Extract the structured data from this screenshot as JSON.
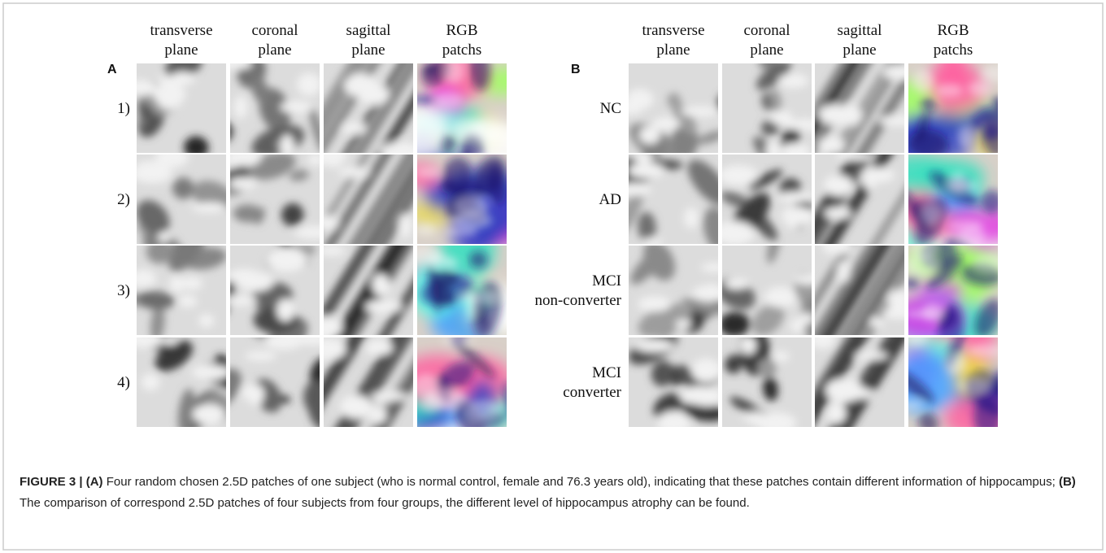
{
  "panel_a": {
    "label": "A",
    "column_headers": [
      [
        "transverse",
        "plane"
      ],
      [
        "coronal",
        "plane"
      ],
      [
        "sagittal",
        "plane"
      ],
      [
        "RGB",
        "patchs"
      ]
    ],
    "row_labels": [
      [
        "1)"
      ],
      [
        "2)"
      ],
      [
        "3)"
      ],
      [
        "4)"
      ]
    ]
  },
  "panel_b": {
    "label": "B",
    "column_headers": [
      [
        "transverse",
        "plane"
      ],
      [
        "coronal",
        "plane"
      ],
      [
        "sagittal",
        "plane"
      ],
      [
        "RGB",
        "patchs"
      ]
    ],
    "row_labels": [
      [
        "NC"
      ],
      [
        "AD"
      ],
      [
        "MCI",
        "non-converter"
      ],
      [
        "MCI",
        "converter"
      ]
    ]
  },
  "caption": {
    "figure_label": "FIGURE 3 |",
    "label_a": "(A)",
    "text_a": "Four random chosen 2.5D patches of one subject (who is normal control, female and 76.3 years old), indicating that these patches contain different information of hippocampus;",
    "label_b": "(B)",
    "text_b": "The comparison of correspond 2.5D patches of four subjects from four groups, the different level of hippocampus atrophy can be found."
  }
}
